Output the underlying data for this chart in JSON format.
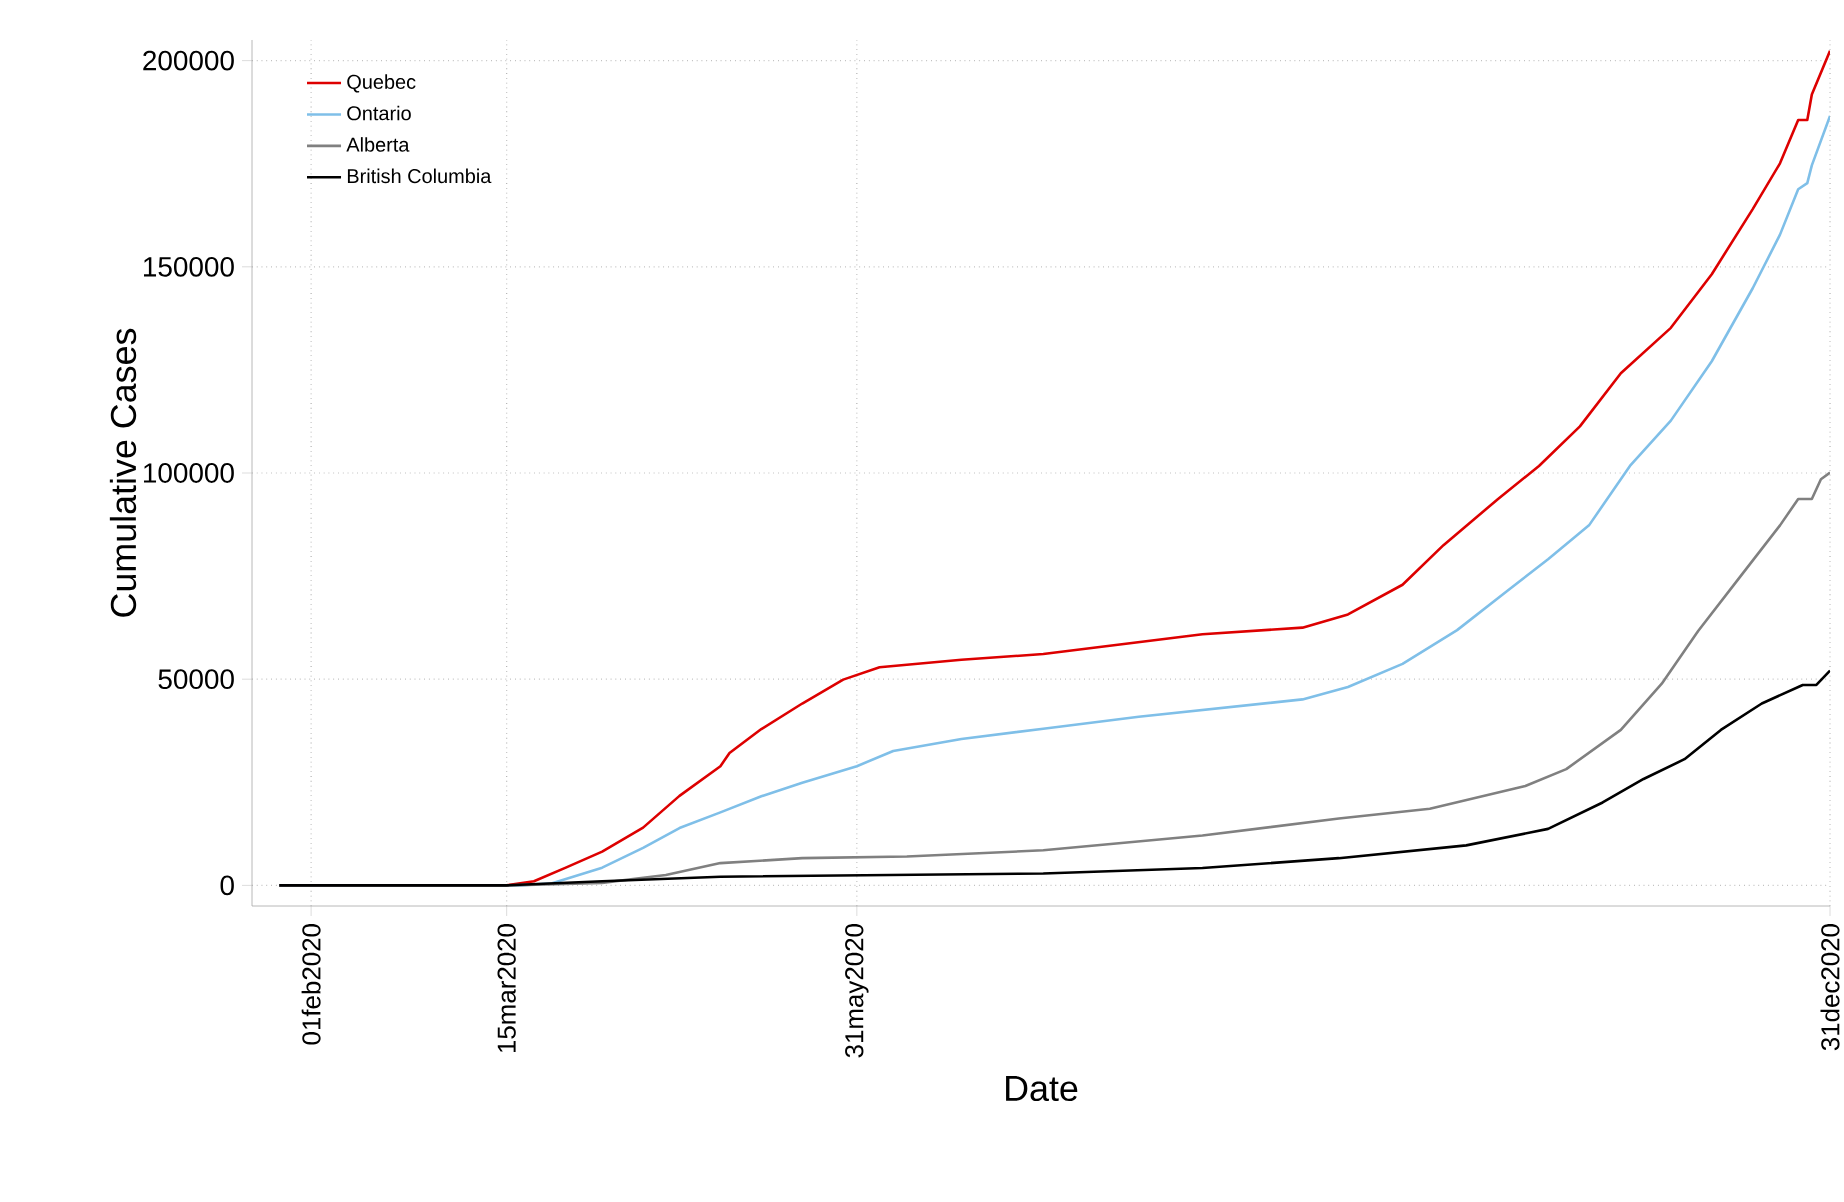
{
  "chart_data": {
    "type": "line",
    "xlabel": "Date",
    "ylabel": "Cumulative Cases",
    "xlim": [
      "2020-01-19",
      "2020-12-31"
    ],
    "ylim": [
      -5000,
      205000
    ],
    "xticks": [
      {
        "value": "2020-02-01",
        "label": "01feb2020"
      },
      {
        "value": "2020-03-15",
        "label": "15mar2020"
      },
      {
        "value": "2020-05-31",
        "label": "31may2020"
      },
      {
        "value": "2020-12-31",
        "label": "31dec2020"
      }
    ],
    "yticks": [
      0,
      50000,
      100000,
      150000,
      200000
    ],
    "grid": true,
    "legend": "top left",
    "series": [
      {
        "name": "Quebec",
        "color": "#dd0000",
        "x": [
          "2020-01-25",
          "2020-03-15",
          "2020-03-21",
          "2020-03-28",
          "2020-04-05",
          "2020-04-14",
          "2020-04-22",
          "2020-05-01",
          "2020-05-03",
          "2020-05-10",
          "2020-05-19",
          "2020-05-28",
          "2020-06-05",
          "2020-06-23",
          "2020-07-11",
          "2020-08-15",
          "2020-09-06",
          "2020-09-16",
          "2020-09-28",
          "2020-10-07",
          "2020-10-19",
          "2020-10-28",
          "2020-11-06",
          "2020-11-15",
          "2020-11-26",
          "2020-12-05",
          "2020-12-14",
          "2020-12-20",
          "2020-12-24",
          "2020-12-26",
          "2020-12-27",
          "2020-12-31"
        ],
        "values": [
          0,
          0,
          1000,
          4300,
          8200,
          14000,
          21700,
          28900,
          32100,
          37900,
          44100,
          49900,
          52900,
          54700,
          56100,
          60900,
          62500,
          65700,
          72900,
          82500,
          93700,
          101700,
          111300,
          124200,
          135200,
          148200,
          164000,
          175100,
          185600,
          185600,
          191800,
          202400
        ]
      },
      {
        "name": "Ontario",
        "color": "#7fbfe8",
        "x": [
          "2020-01-25",
          "2020-03-18",
          "2020-03-25",
          "2020-04-05",
          "2020-04-14",
          "2020-04-22",
          "2020-05-01",
          "2020-05-10",
          "2020-05-19",
          "2020-05-31",
          "2020-06-08",
          "2020-06-23",
          "2020-07-11",
          "2020-08-01",
          "2020-09-06",
          "2020-09-16",
          "2020-09-28",
          "2020-10-10",
          "2020-10-21",
          "2020-10-30",
          "2020-11-08",
          "2020-11-17",
          "2020-11-26",
          "2020-12-05",
          "2020-12-14",
          "2020-12-20",
          "2020-12-24",
          "2020-12-26",
          "2020-12-27",
          "2020-12-31"
        ],
        "values": [
          0,
          0,
          500,
          4300,
          9100,
          13900,
          17700,
          21600,
          24900,
          28900,
          32600,
          35500,
          38000,
          40900,
          45100,
          48100,
          53700,
          61900,
          71400,
          79100,
          87300,
          101700,
          112700,
          127100,
          144800,
          157800,
          168800,
          170300,
          174600,
          186600
        ]
      },
      {
        "name": "Alberta",
        "color": "#808080",
        "x": [
          "2020-01-25",
          "2020-03-15",
          "2020-04-05",
          "2020-04-19",
          "2020-05-01",
          "2020-05-19",
          "2020-06-11",
          "2020-07-11",
          "2020-08-15",
          "2020-09-14",
          "2020-10-04",
          "2020-10-25",
          "2020-11-03",
          "2020-11-15",
          "2020-11-24",
          "2020-12-02",
          "2020-12-11",
          "2020-12-20",
          "2020-12-24",
          "2020-12-27",
          "2020-12-29",
          "2020-12-31"
        ],
        "values": [
          0,
          0,
          600,
          2500,
          5400,
          6600,
          7000,
          8500,
          12100,
          16200,
          18600,
          24100,
          28200,
          37700,
          48900,
          61700,
          74500,
          87300,
          93700,
          93700,
          98500,
          100100
        ]
      },
      {
        "name": "British Columbia",
        "color": "#000000",
        "x": [
          "2020-01-25",
          "2020-03-15",
          "2020-04-05",
          "2020-05-01",
          "2020-07-11",
          "2020-08-15",
          "2020-09-14",
          "2020-10-12",
          "2020-10-30",
          "2020-11-11",
          "2020-11-20",
          "2020-11-29",
          "2020-12-07",
          "2020-12-16",
          "2020-12-25",
          "2020-12-28",
          "2020-12-31"
        ],
        "values": [
          0,
          0,
          1000,
          2100,
          2900,
          4200,
          6600,
          9700,
          13700,
          20100,
          25800,
          30600,
          37700,
          44100,
          48600,
          48600,
          52100
        ]
      }
    ]
  }
}
